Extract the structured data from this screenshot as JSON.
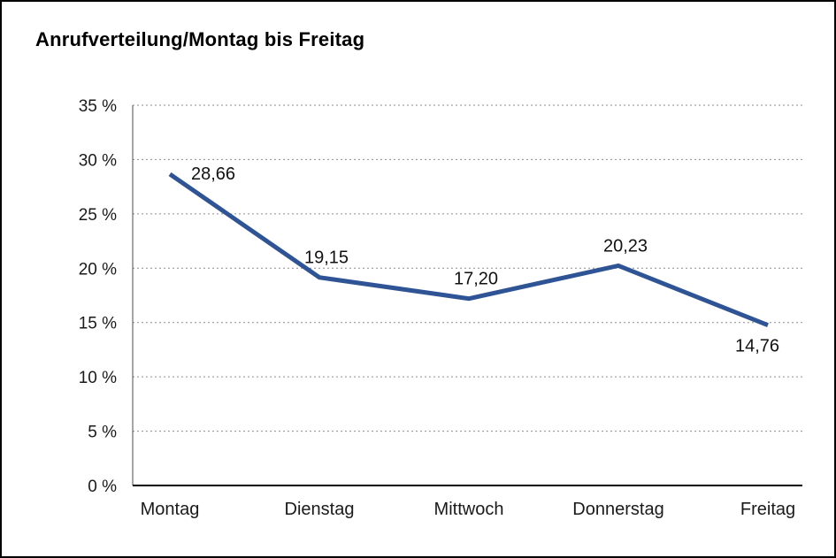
{
  "chart_data": {
    "type": "line",
    "title": "Anrufverteilung/Montag bis Freitag",
    "categories": [
      "Montag",
      "Dienstag",
      "Mittwoch",
      "Donnerstag",
      "Freitag"
    ],
    "values": [
      28.66,
      19.15,
      17.2,
      20.23,
      14.76
    ],
    "value_labels": [
      "28,66",
      "19,15",
      "17,20",
      "20,23",
      "14,76"
    ],
    "label_placement": [
      "right",
      "above",
      "above",
      "above",
      "below"
    ],
    "xlabel": "",
    "ylabel": "",
    "ylim": [
      0,
      35
    ],
    "y_tick_step": 5,
    "y_tick_labels": [
      "0 %",
      "5 %",
      "10 %",
      "15 %",
      "20 %",
      "25 %",
      "30 %",
      "35 %"
    ],
    "grid": "horizontal-dotted",
    "legend": "none",
    "line_color": "#2F5496",
    "tick_label_color": "#1a1a1a",
    "data_label_color": "#111111"
  }
}
